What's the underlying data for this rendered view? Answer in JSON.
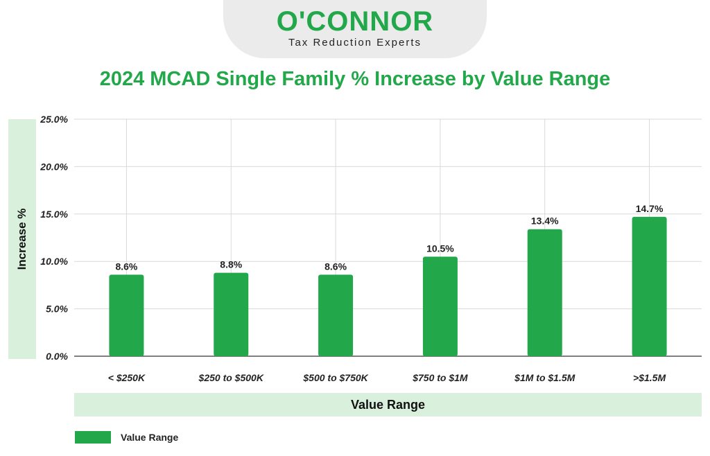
{
  "brand": {
    "name": "O'CONNOR",
    "tagline": "Tax Reduction Experts",
    "color": "#22a84a"
  },
  "chart_data": {
    "type": "bar",
    "title": "2024 MCAD Single Family % Increase by Value Range",
    "xlabel": "Value Range",
    "ylabel": "Increase %",
    "categories": [
      "< $250K",
      "$250 to $500K",
      "$500 to $750K",
      "$750 to $1M",
      "$1M to $1.5M",
      ">$1.5M"
    ],
    "series": [
      {
        "name": "Value Range",
        "values": [
          8.6,
          8.8,
          8.6,
          10.5,
          13.4,
          14.7
        ]
      }
    ],
    "value_labels": [
      "8.6%",
      "8.8%",
      "8.6%",
      "10.5%",
      "13.4%",
      "14.7%"
    ],
    "ylim": [
      0,
      25
    ],
    "yticks": [
      0,
      5,
      10,
      15,
      20,
      25
    ],
    "ytick_labels": [
      "0.0%",
      "5.0%",
      "10.0%",
      "15.0%",
      "20.0%",
      "25.0%"
    ],
    "grid": true,
    "legend_position": "bottom-left",
    "bar_color": "#22a84a"
  }
}
